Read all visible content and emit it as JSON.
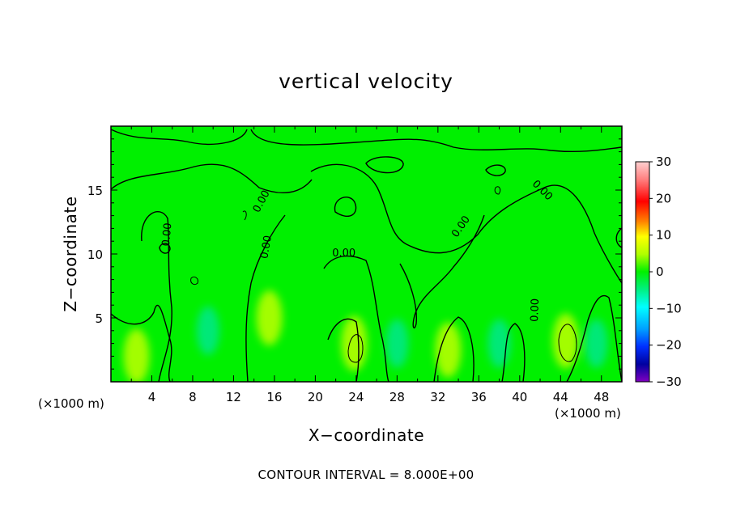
{
  "chart_data": {
    "type": "heatmap",
    "title": "vertical velocity",
    "xlabel": "X−coordinate",
    "ylabel": "Z−coordinate",
    "x_unit": "(×1000 m)",
    "z_unit": "(×1000 m)",
    "xlim": [
      0,
      50
    ],
    "ylim": [
      0,
      20
    ],
    "x_ticks": [
      4,
      8,
      12,
      16,
      20,
      24,
      28,
      32,
      36,
      40,
      44,
      48
    ],
    "y_ticks": [
      5,
      10,
      15
    ],
    "colorbar": {
      "ticks": [
        30,
        20,
        10,
        0,
        -10,
        -20,
        -30
      ],
      "tick_labels": [
        "30",
        "20",
        "10",
        "0",
        "−10",
        "−20",
        "−30"
      ],
      "range": [
        -30,
        30
      ]
    },
    "contour_label": "0.00",
    "contour_interval_text": "CONTOUR INTERVAL = 8.000E+00",
    "highlighted_regions": [
      {
        "x_center": 23.8,
        "z_center": 3.0,
        "value_approx": 8,
        "kind": "updraft"
      },
      {
        "x_center": 44.5,
        "z_center": 3.2,
        "value_approx": 8,
        "kind": "updraft"
      },
      {
        "x_center": 2.5,
        "z_center": 2.0,
        "value_approx": 5,
        "kind": "updraft"
      },
      {
        "x_center": 33.0,
        "z_center": 2.5,
        "value_approx": 5,
        "kind": "updraft"
      },
      {
        "x_center": 15.5,
        "z_center": 5.0,
        "value_approx": 4,
        "kind": "updraft"
      },
      {
        "x_center": 28.0,
        "z_center": 3.0,
        "value_approx": -5,
        "kind": "downdraft"
      },
      {
        "x_center": 38.0,
        "z_center": 3.0,
        "value_approx": -5,
        "kind": "downdraft"
      },
      {
        "x_center": 9.5,
        "z_center": 4.0,
        "value_approx": -4,
        "kind": "downdraft"
      },
      {
        "x_center": 47.5,
        "z_center": 3.0,
        "value_approx": -4,
        "kind": "downdraft"
      }
    ],
    "colors": {
      "background_field": "#00f000",
      "updraft": "#c0ff00",
      "downdraft": "#00e6a0",
      "contour_line": "#000000"
    }
  }
}
